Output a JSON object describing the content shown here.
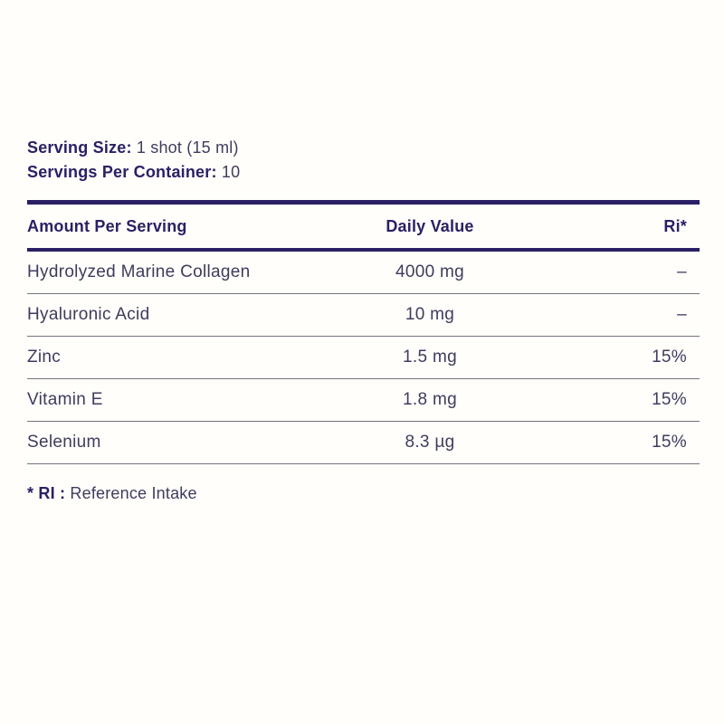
{
  "page": {
    "background_color": "#fffefb"
  },
  "colors": {
    "ink": "#2b2065",
    "body_text": "#3f3c5c",
    "separator": "#76737c"
  },
  "serving": {
    "size_label": "Serving Size:",
    "size_value": "1 shot (15 ml)",
    "container_label": "Servings Per Container:",
    "container_value": "10"
  },
  "table": {
    "headers": {
      "amount": "Amount Per Serving",
      "daily_value": "Daily Value",
      "ri": "Ri*"
    },
    "rows": [
      {
        "name": "Hydrolyzed Marine Collagen",
        "amount": "4000 mg",
        "ri": "–"
      },
      {
        "name": "Hyaluronic Acid",
        "amount": "10 mg",
        "ri": "–"
      },
      {
        "name": "Zinc",
        "amount": "1.5 mg",
        "ri": "15%"
      },
      {
        "name": "Vitamin E",
        "amount": "1.8 mg",
        "ri": "15%"
      },
      {
        "name": "Selenium",
        "amount": "8.3 µg",
        "ri": "15%"
      }
    ]
  },
  "footnote": {
    "marker": "* RI :",
    "text": "Reference Intake"
  }
}
